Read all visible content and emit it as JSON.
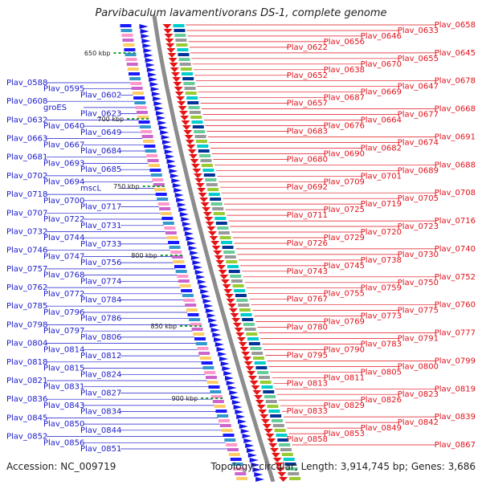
{
  "title": "Parvibaculum lavamentivorans DS-1, complete genome",
  "accession": "Accession: NC_009719",
  "topology": "Topology: circular; Length: 3,914,745 bp; Genes: 3,686",
  "colors": {
    "left_labels": "#1a1acc",
    "right_labels": "#e0101a",
    "backbone": "#8c8c8c",
    "tick": "#1f9a3a"
  },
  "ticks": [
    "650 kbp",
    "700 kbp",
    "750 kbp",
    "800 kbp",
    "850 kbp",
    "900 kbp"
  ],
  "left_labels": [
    "Plav_0588",
    "Plav_0595",
    "Plav_0602",
    "Plav_0608",
    "groES",
    "Plav_0623",
    "Plav_0632",
    "Plav_0640",
    "Plav_0649",
    "Plav_0663",
    "Plav_0667",
    "Plav_0684",
    "Plav_0681",
    "Plav_0693",
    "Plav_0685",
    "Plav_0702",
    "Plav_0694",
    "mscL",
    "Plav_0718",
    "Plav_0700",
    "Plav_0717",
    "Plav_0707",
    "Plav_0722",
    "Plav_0731",
    "Plav_0732",
    "Plav_0744",
    "Plav_0733",
    "Plav_0746",
    "Plav_0747",
    "Plav_0756",
    "Plav_0757",
    "Plav_0768",
    "Plav_0774",
    "Plav_0762",
    "Plav_0772",
    "Plav_0784",
    "Plav_0785",
    "Plav_0796",
    "Plav_0786",
    "Plav_0798",
    "Plav_0797",
    "Plav_0806",
    "Plav_0804",
    "Plav_0814",
    "Plav_0812",
    "Plav_0818",
    "Plav_0815",
    "Plav_0824",
    "Plav_0821",
    "Plav_0831",
    "Plav_0827",
    "Plav_0836",
    "Plav_0843",
    "Plav_0834",
    "Plav_0845",
    "Plav_0850",
    "Plav_0844",
    "Plav_0852",
    "Plav_0856",
    "Plav_0851"
  ],
  "right_labels": [
    "Plav_0658",
    "Plav_0633",
    "Plav_0646",
    "Plav_0656",
    "Plav_0622",
    "Plav_0645",
    "Plav_0655",
    "Plav_0670",
    "Plav_0638",
    "Plav_0652",
    "Plav_0678",
    "Plav_0647",
    "Plav_0669",
    "Plav_0687",
    "Plav_0657",
    "Plav_0668",
    "Plav_0677",
    "Plav_0664",
    "Plav_0676",
    "Plav_0683",
    "Plav_0691",
    "Plav_0674",
    "Plav_0682",
    "Plav_0690",
    "Plav_0680",
    "Plav_0688",
    "Plav_0689",
    "Plav_0701",
    "Plav_0709",
    "Plav_0692",
    "Plav_0708",
    "Plav_0705",
    "Plav_0719",
    "Plav_0725",
    "Plav_0711",
    "Plav_0716",
    "Plav_0723",
    "Plav_0720",
    "Plav_0729",
    "Plav_0726",
    "Plav_0740",
    "Plav_0730",
    "Plav_0738",
    "Plav_0745",
    "Plav_0743",
    "Plav_0752",
    "Plav_0750",
    "Plav_0759",
    "Plav_0755",
    "Plav_0767",
    "Plav_0760",
    "Plav_0775",
    "Plav_0773",
    "Plav_0769",
    "Plav_0780",
    "Plav_0777",
    "Plav_0791",
    "Plav_0783",
    "Plav_0790",
    "Plav_0795",
    "Plav_0799",
    "Plav_0800",
    "Plav_0805",
    "Plav_0811",
    "Plav_0813",
    "Plav_0819",
    "Plav_0823",
    "Plav_0826",
    "Plav_0829",
    "Plav_0833",
    "Plav_0839",
    "Plav_0842",
    "Plav_0849",
    "Plav_0853",
    "Plav_0858",
    "Plav_0867"
  ]
}
